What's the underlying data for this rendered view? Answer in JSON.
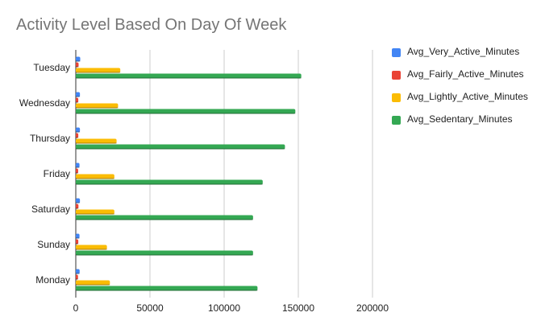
{
  "chart_data": {
    "type": "bar",
    "orientation": "horizontal",
    "title": "Activity Level Based On Day Of Week",
    "xlabel": "",
    "ylabel": "",
    "categories": [
      "Tuesday",
      "Wednesday",
      "Thursday",
      "Friday",
      "Saturday",
      "Sunday",
      "Monday"
    ],
    "xlim": [
      0,
      200000
    ],
    "xticks": [
      "0",
      "50000",
      "100000",
      "150000",
      "200000"
    ],
    "grid": true,
    "legend_position": "right",
    "series": [
      {
        "name": "Avg_Very_Active_Minutes",
        "color": "#4285f4",
        "values": [
          3000,
          2800,
          2800,
          2500,
          2800,
          2500,
          2600
        ]
      },
      {
        "name": "Avg_Fairly_Active_Minutes",
        "color": "#ea4335",
        "values": [
          1900,
          1700,
          1700,
          1600,
          1800,
          1700,
          1500
        ]
      },
      {
        "name": "Avg_Lightly_Active_Minutes",
        "color": "#fbbc04",
        "values": [
          30000,
          28500,
          27500,
          26000,
          26000,
          21000,
          23000
        ]
      },
      {
        "name": "Avg_Sedentary_Minutes",
        "color": "#34a853",
        "values": [
          152000,
          148000,
          141000,
          126000,
          119500,
          119500,
          122500
        ]
      }
    ]
  }
}
